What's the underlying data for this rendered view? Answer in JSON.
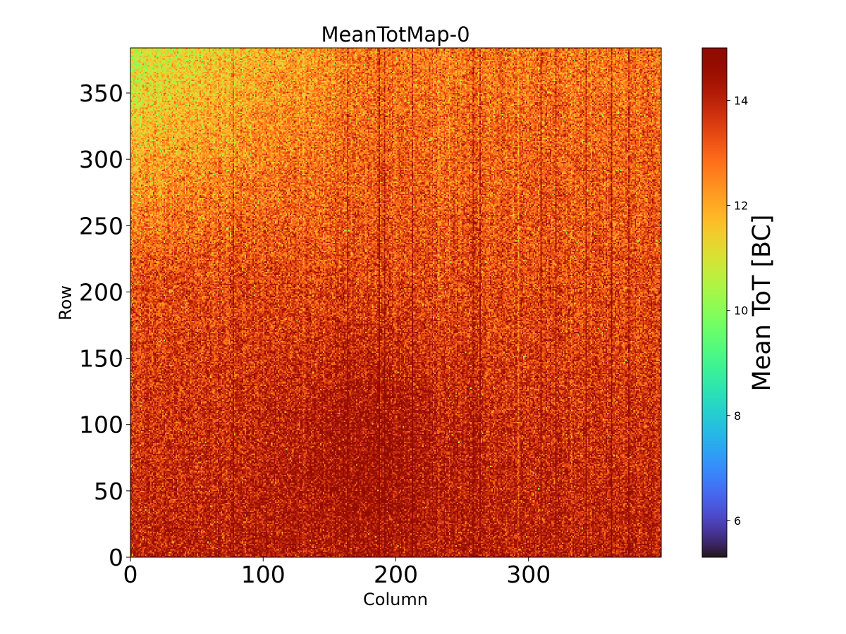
{
  "chart_data": {
    "type": "heatmap",
    "title": "MeanTotMap-0",
    "xlabel": "Column",
    "ylabel": "Row",
    "xlim": [
      0,
      400
    ],
    "ylim": [
      0,
      384
    ],
    "x_ticks": [
      0,
      100,
      200,
      300
    ],
    "y_ticks": [
      0,
      50,
      100,
      150,
      200,
      250,
      300,
      350
    ],
    "colorbar": {
      "label": "Mean ToT [BC]",
      "range": [
        5.3,
        15
      ],
      "ticks": [
        6,
        8,
        10,
        12,
        14
      ],
      "colormap": "turbo"
    },
    "distribution": {
      "typical_value": 13.5,
      "min_observed": 9.5,
      "max_observed": 15,
      "note": "per-pixel noise; higher values in lower rows, greener pixels in upper-left region"
    },
    "hot_columns": [
      77,
      163,
      187,
      191,
      212,
      258,
      263,
      309,
      320,
      343,
      362,
      375
    ],
    "cold_columns": [
      130,
      232,
      240,
      248,
      292,
      332
    ]
  }
}
